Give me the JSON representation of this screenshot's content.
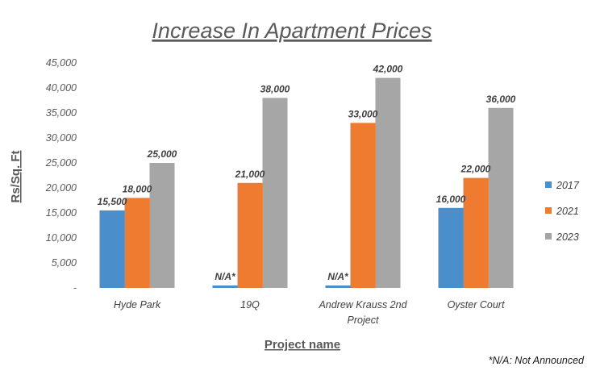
{
  "chart_data": {
    "type": "bar",
    "title": "Increase In Apartment Prices",
    "xlabel": "Project name",
    "ylabel": "Rs/Sq. Ft",
    "categories": [
      [
        "Hyde Park"
      ],
      [
        "19Q"
      ],
      [
        "Andrew Krauss 2nd",
        "Project"
      ],
      [
        "Oyster Court"
      ]
    ],
    "series": [
      {
        "name": "2017",
        "color": "#4a8fcc",
        "values": [
          15500,
          0,
          0,
          16000
        ],
        "labels": [
          "15,500",
          "N/A*",
          "N/A*",
          "16,000"
        ]
      },
      {
        "name": "2021",
        "color": "#ee7b30",
        "values": [
          18000,
          21000,
          33000,
          22000
        ],
        "labels": [
          "18,000",
          "21,000",
          "33,000",
          "22,000"
        ]
      },
      {
        "name": "2023",
        "color": "#a6a6a6",
        "values": [
          25000,
          38000,
          42000,
          36000
        ],
        "labels": [
          "25,000",
          "38,000",
          "42,000",
          "36,000"
        ]
      }
    ],
    "ylim": [
      0,
      45000
    ],
    "yticks": [
      0,
      5000,
      10000,
      15000,
      20000,
      25000,
      30000,
      35000,
      40000,
      45000
    ],
    "ytick_labels": [
      "-",
      "5,000",
      "10,000",
      "15,000",
      "20,000",
      "25,000",
      "30,000",
      "35,000",
      "40,000",
      "45,000"
    ],
    "grid": false,
    "legend_position": "right",
    "footnote": "*N/A: Not Announced"
  }
}
